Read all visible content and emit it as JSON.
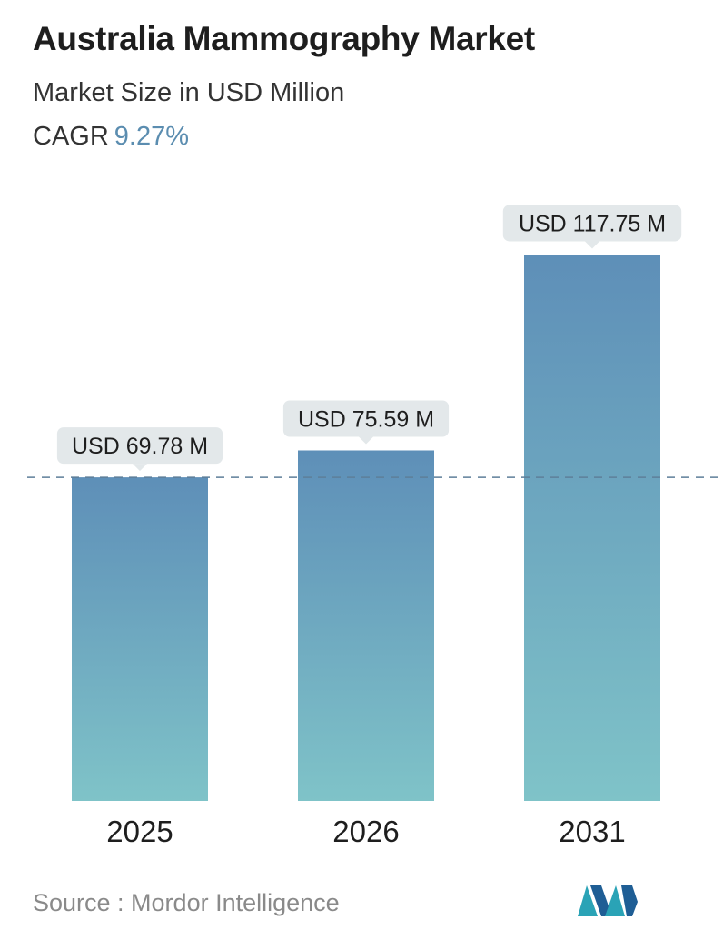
{
  "header": {
    "title": "Australia Mammography Market",
    "subtitle": "Market Size in USD Million",
    "cagr_label": "CAGR",
    "cagr_value": "9.27%"
  },
  "chart_data": {
    "type": "bar",
    "categories": [
      "2025",
      "2026",
      "2031"
    ],
    "values": [
      69.78,
      75.59,
      117.75
    ],
    "value_labels": [
      "USD 69.78 M",
      "USD 75.59 M",
      "USD 117.75 M"
    ],
    "reference_line": 69.78,
    "unit": "USD Million",
    "grid": false
  },
  "footer": {
    "source": "Source :  Mordor Intelligence"
  },
  "colors": {
    "bar_top": "#5e8fb8",
    "bar_bottom": "#7fc3c8",
    "label_bg": "#e3e8ea",
    "cagr_accent": "#5b8db0",
    "dashed_line": "#5e7f99",
    "logo_teal": "#2aa3b6",
    "logo_blue": "#1f5e95"
  }
}
